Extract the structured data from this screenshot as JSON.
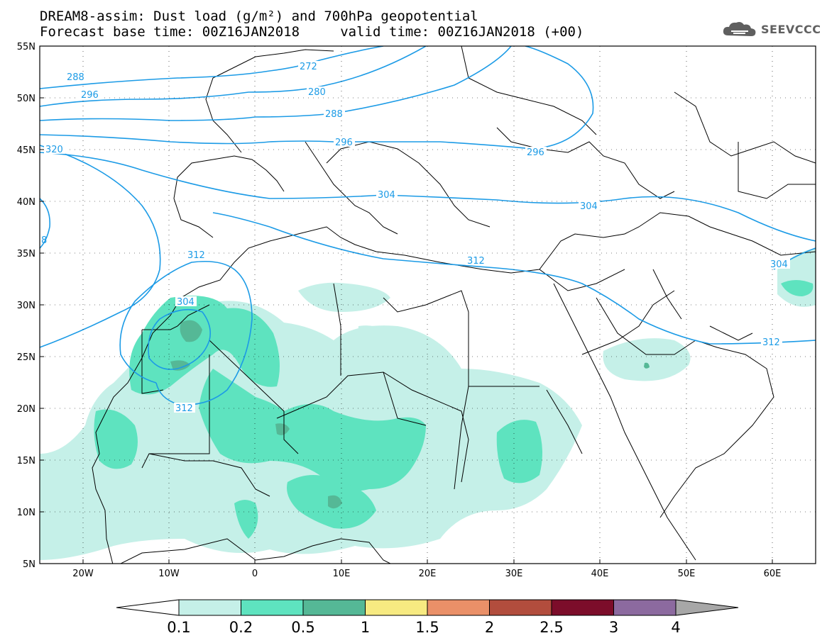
{
  "header": {
    "title_line1": "DREAM8-assim: Dust load (g/m²) and 700hPa geopotential",
    "title_line2": "Forecast base time: 00Z16JAN2018     valid time: 00Z16JAN2018 (+00)"
  },
  "logo": {
    "text": "SEEVCCC",
    "icon": "cloud-icon"
  },
  "axes": {
    "lat_labels": [
      "55N",
      "50N",
      "45N",
      "40N",
      "35N",
      "30N",
      "25N",
      "20N",
      "15N",
      "10N",
      "5N"
    ],
    "lon_labels": [
      "20W",
      "10W",
      "0",
      "10E",
      "20E",
      "30E",
      "40E",
      "50E",
      "60E"
    ],
    "lat_values": [
      55,
      50,
      45,
      40,
      35,
      30,
      25,
      20,
      15,
      10,
      5
    ],
    "lon_values": [
      -20,
      -10,
      0,
      10,
      20,
      30,
      40,
      50,
      60
    ],
    "grid": "dotted"
  },
  "contours": {
    "color": "#1c9be6",
    "labels": [
      "288",
      "296",
      "320",
      "272",
      "280",
      "288",
      "296",
      "296",
      "304",
      "304",
      "304",
      "312",
      "312",
      "304",
      "312",
      "312",
      "8"
    ]
  },
  "colorbar": {
    "levels": [
      "0.1",
      "0.2",
      "0.5",
      "1",
      "1.5",
      "2",
      "2.5",
      "3",
      "4"
    ],
    "colors": [
      "#c5f0e8",
      "#5ee3bf",
      "#55b896",
      "#f7ea81",
      "#ea9068",
      "#b24d3d",
      "#7c0d2a",
      "#8c6a9f",
      "#a7a7a7"
    ],
    "under_color": "#ffffff"
  }
}
